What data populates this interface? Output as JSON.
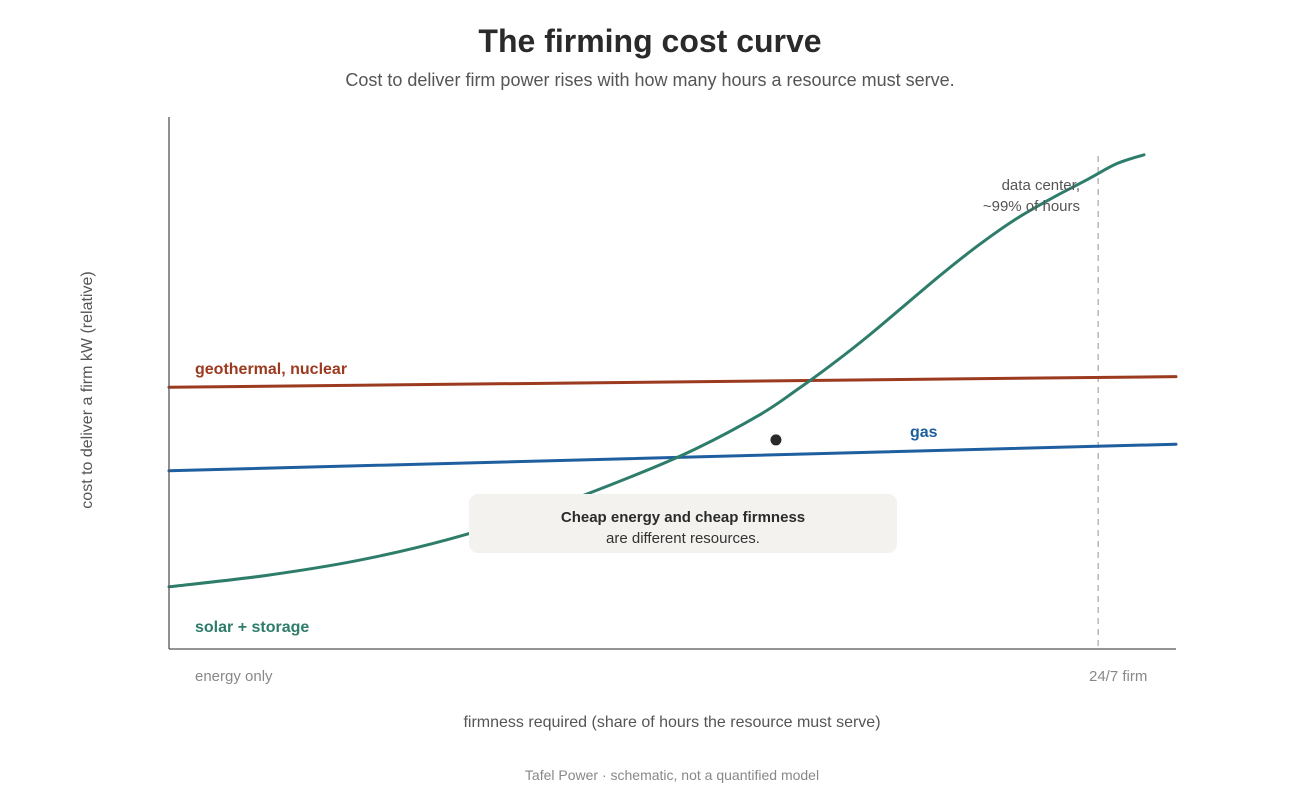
{
  "chart_data": {
    "type": "line",
    "title": "The firming cost curve",
    "subtitle": "Cost to deliver firm power rises with how many hours a resource must serve.",
    "xlabel": "firmness required (share of hours the resource must serve)",
    "ylabel": "cost to deliver a firm kW (relative)",
    "x_tick_labels": [
      {
        "x": 0.0,
        "label": "energy only"
      },
      {
        "x": 0.99,
        "label": "24/7 firm"
      }
    ],
    "xlim": [
      -0.025,
      1.075
    ],
    "ylim": [
      0,
      100
    ],
    "grid": false,
    "legend": "none (direct labels)",
    "series": [
      {
        "name": "geothermal, nuclear",
        "color": "#9c3a1f",
        "x": [
          -0.025,
          1.075
        ],
        "y": [
          49.2,
          51.2
        ]
      },
      {
        "name": "gas",
        "color": "#1f5fa0",
        "x": [
          -0.025,
          1.075
        ],
        "y": [
          33.5,
          38.5
        ]
      },
      {
        "name": "solar + storage",
        "color": "#2e7d6b",
        "x": [
          -0.025,
          0.08,
          0.18,
          0.28,
          0.38,
          0.48,
          0.55,
          0.62,
          0.66,
          0.7,
          0.74,
          0.78,
          0.82,
          0.86,
          0.9,
          0.94,
          0.98,
          1.01,
          1.04
        ],
        "y": [
          11.7,
          13.8,
          16.6,
          20.6,
          25.9,
          32.4,
          37.6,
          44.0,
          48.6,
          53.6,
          59.0,
          64.8,
          70.6,
          76.0,
          80.8,
          84.8,
          88.4,
          91.2,
          92.9
        ]
      }
    ],
    "marker": {
      "x": 0.638,
      "y": 39.3
    },
    "reference_line": {
      "x": 0.99,
      "label_lines": [
        "data center,",
        "~99% of hours"
      ]
    },
    "callout": {
      "title": "Cheap energy and cheap firmness",
      "text": "are different resources."
    },
    "source": "Tafel Power · schematic, not a quantified model"
  }
}
